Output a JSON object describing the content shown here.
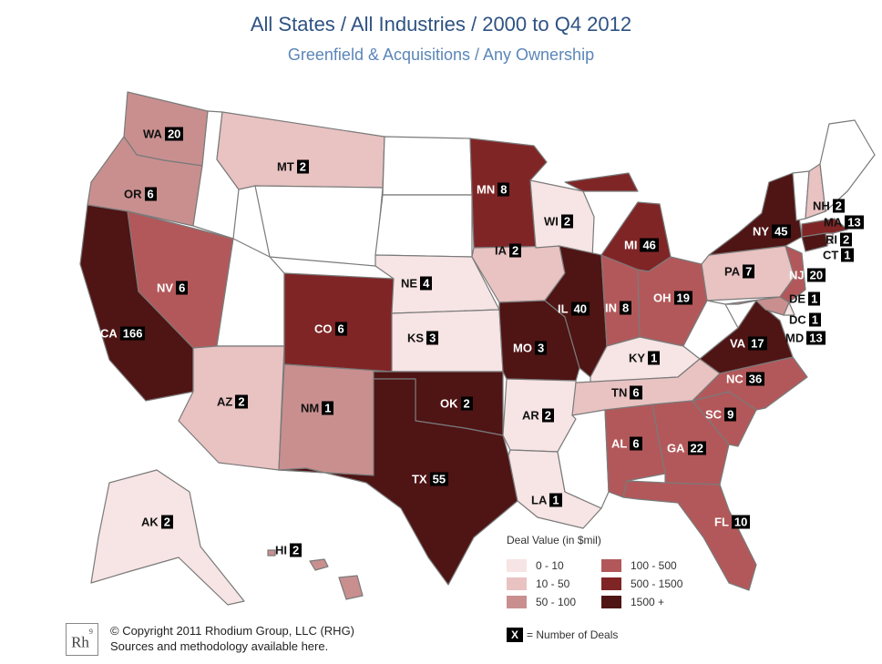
{
  "title": "All States / All Industries / 2000 to Q4 2012",
  "subtitle": "Greenfield & Acquisitions / Any Ownership",
  "legend": {
    "title": "Deal Value (in $mil)",
    "bins": [
      {
        "label": "0 - 10",
        "color": "#f7e4e4"
      },
      {
        "label": "10 - 50",
        "color": "#e9c2c2"
      },
      {
        "label": "50 - 100",
        "color": "#c98f8f"
      },
      {
        "label": "100 - 500",
        "color": "#b3585a"
      },
      {
        "label": "500 - 1500",
        "color": "#802526"
      },
      {
        "label": "1500 +",
        "color": "#4f1414"
      }
    ],
    "key_symbol": "X",
    "key_text": "= Number of Deals"
  },
  "copyright": {
    "logo": "Rh",
    "logo_sup": "9",
    "line1": "© Copyright 2011 Rhodium Group, LLC (RHG)",
    "line2": "Sources and methodology available here."
  },
  "states": [
    {
      "code": "WA",
      "deals": "20",
      "bin": 2
    },
    {
      "code": "OR",
      "deals": "6",
      "bin": 2
    },
    {
      "code": "CA",
      "deals": "166",
      "bin": 5
    },
    {
      "code": "NV",
      "deals": "6",
      "bin": 3
    },
    {
      "code": "MT",
      "deals": "2",
      "bin": 1
    },
    {
      "code": "AZ",
      "deals": "2",
      "bin": 1
    },
    {
      "code": "NM",
      "deals": "1",
      "bin": 2
    },
    {
      "code": "CO",
      "deals": "6",
      "bin": 4
    },
    {
      "code": "NE",
      "deals": "4",
      "bin": 0
    },
    {
      "code": "KS",
      "deals": "3",
      "bin": 0
    },
    {
      "code": "OK",
      "deals": "2",
      "bin": 5
    },
    {
      "code": "TX",
      "deals": "55",
      "bin": 5
    },
    {
      "code": "MN",
      "deals": "8",
      "bin": 4
    },
    {
      "code": "IA",
      "deals": "2",
      "bin": 1
    },
    {
      "code": "MO",
      "deals": "3",
      "bin": 5
    },
    {
      "code": "AR",
      "deals": "2",
      "bin": 0
    },
    {
      "code": "LA",
      "deals": "1",
      "bin": 0
    },
    {
      "code": "WI",
      "deals": "2",
      "bin": 0
    },
    {
      "code": "IL",
      "deals": "40",
      "bin": 5
    },
    {
      "code": "MI",
      "deals": "46",
      "bin": 4
    },
    {
      "code": "IN",
      "deals": "8",
      "bin": 3
    },
    {
      "code": "OH",
      "deals": "19",
      "bin": 3
    },
    {
      "code": "KY",
      "deals": "1",
      "bin": 0
    },
    {
      "code": "TN",
      "deals": "6",
      "bin": 1
    },
    {
      "code": "AL",
      "deals": "6",
      "bin": 3
    },
    {
      "code": "GA",
      "deals": "22",
      "bin": 3
    },
    {
      "code": "FL",
      "deals": "10",
      "bin": 3
    },
    {
      "code": "SC",
      "deals": "9",
      "bin": 3
    },
    {
      "code": "NC",
      "deals": "36",
      "bin": 3
    },
    {
      "code": "VA",
      "deals": "17",
      "bin": 5
    },
    {
      "code": "PA",
      "deals": "7",
      "bin": 1
    },
    {
      "code": "NY",
      "deals": "45",
      "bin": 5
    },
    {
      "code": "NJ",
      "deals": "20",
      "bin": 3
    },
    {
      "code": "DE",
      "deals": "1",
      "bin": 0
    },
    {
      "code": "DC",
      "deals": "1",
      "bin": 0
    },
    {
      "code": "MD",
      "deals": "13",
      "bin": 2
    },
    {
      "code": "CT",
      "deals": "1",
      "bin": 5
    },
    {
      "code": "RI",
      "deals": "2",
      "bin": 0
    },
    {
      "code": "MA",
      "deals": "13",
      "bin": 4
    },
    {
      "code": "NH",
      "deals": "2",
      "bin": 1
    },
    {
      "code": "AK",
      "deals": "2",
      "bin": 0
    },
    {
      "code": "HI",
      "deals": "2",
      "bin": 2
    }
  ],
  "empty_state_color": "#ffffff"
}
